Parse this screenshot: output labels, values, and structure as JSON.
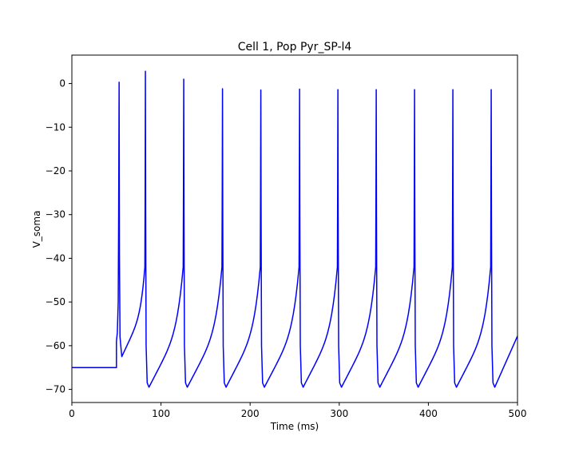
{
  "chart_data": {
    "type": "line",
    "title": "Cell 1, Pop Pyr_SP-l4",
    "xlabel": "Time (ms)",
    "ylabel": "V_soma",
    "xlim": [
      0,
      500
    ],
    "ylim": [
      -73,
      6.5
    ],
    "xticks": [
      0,
      100,
      200,
      300,
      400,
      500
    ],
    "yticks": [
      0,
      -10,
      -20,
      -30,
      -40,
      -50,
      -60,
      -70
    ],
    "xtick_labels": [
      "0",
      "100",
      "200",
      "300",
      "400",
      "500"
    ],
    "ytick_labels": [
      "0",
      "−10",
      "−20",
      "−30",
      "−40",
      "−50",
      "−60",
      "−70"
    ],
    "grid": false,
    "line_color": "#0000ff",
    "series": [
      {
        "resting_potential": -65,
        "stimulus_onset": 50,
        "first_trough": -62.5,
        "trough": -69.5,
        "end_value": -57.8,
        "spikes": [
          {
            "t": 53,
            "peak": 0.3
          },
          {
            "t": 82.5,
            "peak": 2.8
          },
          {
            "t": 125.5,
            "peak": 1.0
          },
          {
            "t": 169,
            "peak": -1.2
          },
          {
            "t": 212,
            "peak": -1.5
          },
          {
            "t": 255.5,
            "peak": -1.3
          },
          {
            "t": 298.5,
            "peak": -1.4
          },
          {
            "t": 341.5,
            "peak": -1.4
          },
          {
            "t": 384.5,
            "peak": -1.4
          },
          {
            "t": 427.5,
            "peak": -1.4
          },
          {
            "t": 470.5,
            "peak": -1.4
          }
        ]
      }
    ]
  }
}
